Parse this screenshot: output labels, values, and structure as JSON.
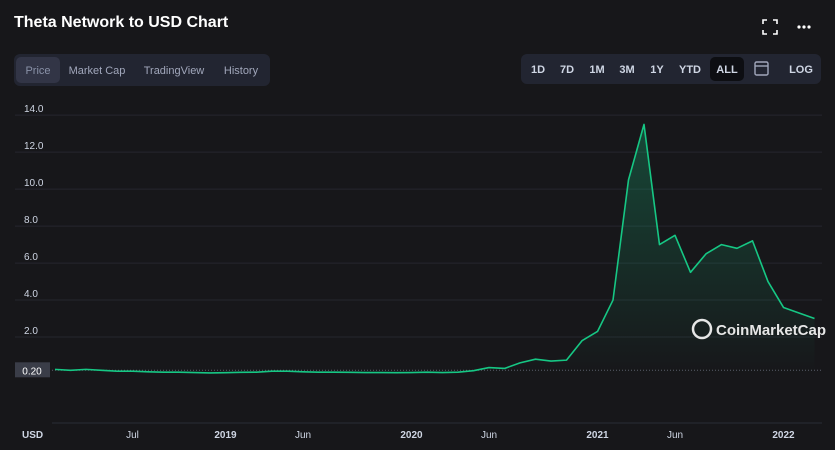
{
  "header": {
    "title": "Theta Network to USD Chart",
    "tabs": [
      "Price",
      "Market Cap",
      "TradingView",
      "History"
    ],
    "active_tab": 0,
    "ranges": [
      "1D",
      "7D",
      "1M",
      "3M",
      "1Y",
      "YTD",
      "ALL"
    ],
    "active_range": 6,
    "log_button": "LOG"
  },
  "chart_data": {
    "type": "line",
    "y_unit": "USD",
    "watermark": "CoinMarketCap",
    "categories": [
      null,
      null,
      null,
      null,
      null,
      "Jul",
      null,
      null,
      null,
      null,
      null,
      "2019",
      null,
      null,
      null,
      null,
      "Jun",
      null,
      null,
      null,
      null,
      null,
      null,
      "2020",
      null,
      null,
      null,
      null,
      "Jun",
      null,
      null,
      null,
      null,
      null,
      null,
      "2021",
      null,
      null,
      null,
      null,
      "Jun",
      null,
      null,
      null,
      null,
      null,
      null,
      "2022",
      null,
      null
    ],
    "series": [
      {
        "name": "Price",
        "color": "#16c784",
        "values": [
          0.25,
          0.2,
          0.25,
          0.2,
          0.15,
          0.15,
          0.12,
          0.1,
          0.1,
          0.08,
          0.06,
          0.07,
          0.09,
          0.1,
          0.15,
          0.15,
          0.12,
          0.1,
          0.1,
          0.09,
          0.08,
          0.08,
          0.07,
          0.08,
          0.1,
          0.08,
          0.1,
          0.18,
          0.35,
          0.3,
          0.6,
          0.8,
          0.7,
          0.75,
          1.8,
          2.3,
          4.0,
          10.5,
          13.5,
          7.0,
          7.5,
          5.5,
          6.5,
          7.0,
          6.8,
          7.2,
          5.0,
          3.6,
          3.3,
          3.0
        ]
      }
    ],
    "reference": {
      "value": 0.2,
      "label": "0.20"
    },
    "ylim": [
      0,
      15.2
    ],
    "yticks": [
      {
        "value": 2,
        "label": "2.0"
      },
      {
        "value": 4,
        "label": "4.0"
      },
      {
        "value": 6,
        "label": "6.0"
      },
      {
        "value": 8,
        "label": "8.0"
      },
      {
        "value": 10,
        "label": "10.0"
      },
      {
        "value": 12,
        "label": "12.0"
      },
      {
        "value": 14,
        "label": "14.0"
      }
    ],
    "grid": true
  }
}
